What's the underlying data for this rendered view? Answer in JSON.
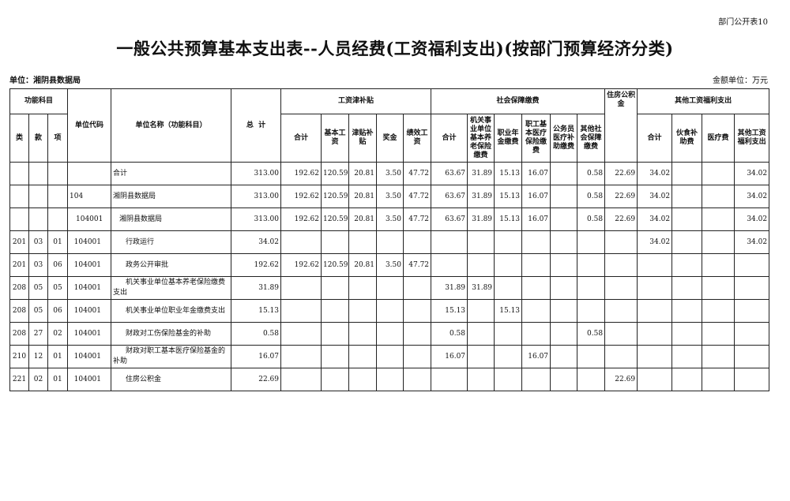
{
  "report_tag": "部门公开表10",
  "title": "一般公共预算基本支出表--人员经费(工资福利支出)(按部门预算经济分类)",
  "unit_label": "单位：湘阴县数据局",
  "amount_unit": "金额单位：万元",
  "headers": {
    "func_subject": "功能科目",
    "lei": "类",
    "kuan": "款",
    "xiang": "项",
    "unit_code": "单位代码",
    "unit_name": "单位名称（功能科目）",
    "total": "总  计",
    "wage_group": "工资津补贴",
    "wage_cols": [
      "合计",
      "基本工资",
      "津贴补贴",
      "奖金",
      "绩效工资"
    ],
    "social_group": "社会保障缴费",
    "social_cols": [
      "合计",
      "机关事业单位基本养老保险缴费",
      "职业年金缴费",
      "职工基本医疗保险缴费",
      "公务员医疗补助缴费",
      "其他社会保障缴费"
    ],
    "housing": "住房公积金",
    "other_group": "其他工资福利支出",
    "other_cols": [
      "合计",
      "伙食补助费",
      "医疗费",
      "其他工资福利支出"
    ]
  },
  "rows": [
    {
      "lei": "",
      "kuan": "",
      "xiang": "",
      "code": "",
      "name": "合计",
      "indent": 0,
      "v": [
        "313.00",
        "192.62",
        "120.59",
        "20.81",
        "3.50",
        "47.72",
        "63.67",
        "31.89",
        "15.13",
        "16.07",
        "",
        "0.58",
        "22.69",
        "34.02",
        "",
        "",
        "34.02"
      ]
    },
    {
      "lei": "",
      "kuan": "",
      "xiang": "",
      "code": "104",
      "name": "湘阴县数据局",
      "indent": 0,
      "v": [
        "313.00",
        "192.62",
        "120.59",
        "20.81",
        "3.50",
        "47.72",
        "63.67",
        "31.89",
        "15.13",
        "16.07",
        "",
        "0.58",
        "22.69",
        "34.02",
        "",
        "",
        "34.02"
      ]
    },
    {
      "lei": "",
      "kuan": "",
      "xiang": "",
      "code": "104001",
      "name": "湘阴县数据局",
      "indent": 1,
      "v": [
        "313.00",
        "192.62",
        "120.59",
        "20.81",
        "3.50",
        "47.72",
        "63.67",
        "31.89",
        "15.13",
        "16.07",
        "",
        "0.58",
        "22.69",
        "34.02",
        "",
        "",
        "34.02"
      ]
    },
    {
      "lei": "201",
      "kuan": "03",
      "xiang": "01",
      "code": "104001",
      "name": "行政运行",
      "indent": 2,
      "v": [
        "34.02",
        "",
        "",
        "",
        "",
        "",
        "",
        "",
        "",
        "",
        "",
        "",
        "",
        "34.02",
        "",
        "",
        "34.02"
      ]
    },
    {
      "lei": "201",
      "kuan": "03",
      "xiang": "06",
      "code": "104001",
      "name": "政务公开审批",
      "indent": 2,
      "v": [
        "192.62",
        "192.62",
        "120.59",
        "20.81",
        "3.50",
        "47.72",
        "",
        "",
        "",
        "",
        "",
        "",
        "",
        "",
        "",
        "",
        ""
      ]
    },
    {
      "lei": "208",
      "kuan": "05",
      "xiang": "05",
      "code": "104001",
      "name": "机关事业单位基本养老保险缴费支出",
      "indent": 2,
      "v": [
        "31.89",
        "",
        "",
        "",
        "",
        "",
        "31.89",
        "31.89",
        "",
        "",
        "",
        "",
        "",
        "",
        "",
        "",
        ""
      ]
    },
    {
      "lei": "208",
      "kuan": "05",
      "xiang": "06",
      "code": "104001",
      "name": "机关事业单位职业年金缴费支出",
      "indent": 2,
      "v": [
        "15.13",
        "",
        "",
        "",
        "",
        "",
        "15.13",
        "",
        "15.13",
        "",
        "",
        "",
        "",
        "",
        "",
        "",
        ""
      ]
    },
    {
      "lei": "208",
      "kuan": "27",
      "xiang": "02",
      "code": "104001",
      "name": "财政对工伤保险基金的补助",
      "indent": 2,
      "v": [
        "0.58",
        "",
        "",
        "",
        "",
        "",
        "0.58",
        "",
        "",
        "",
        "",
        "0.58",
        "",
        "",
        "",
        "",
        ""
      ]
    },
    {
      "lei": "210",
      "kuan": "12",
      "xiang": "01",
      "code": "104001",
      "name": "财政对职工基本医疗保险基金的补助",
      "indent": 2,
      "v": [
        "16.07",
        "",
        "",
        "",
        "",
        "",
        "16.07",
        "",
        "",
        "16.07",
        "",
        "",
        "",
        "",
        "",
        "",
        ""
      ]
    },
    {
      "lei": "221",
      "kuan": "02",
      "xiang": "01",
      "code": "104001",
      "name": "住房公积金",
      "indent": 2,
      "v": [
        "22.69",
        "",
        "",
        "",
        "",
        "",
        "",
        "",
        "",
        "",
        "",
        "",
        "22.69",
        "",
        "",
        "",
        ""
      ]
    }
  ]
}
